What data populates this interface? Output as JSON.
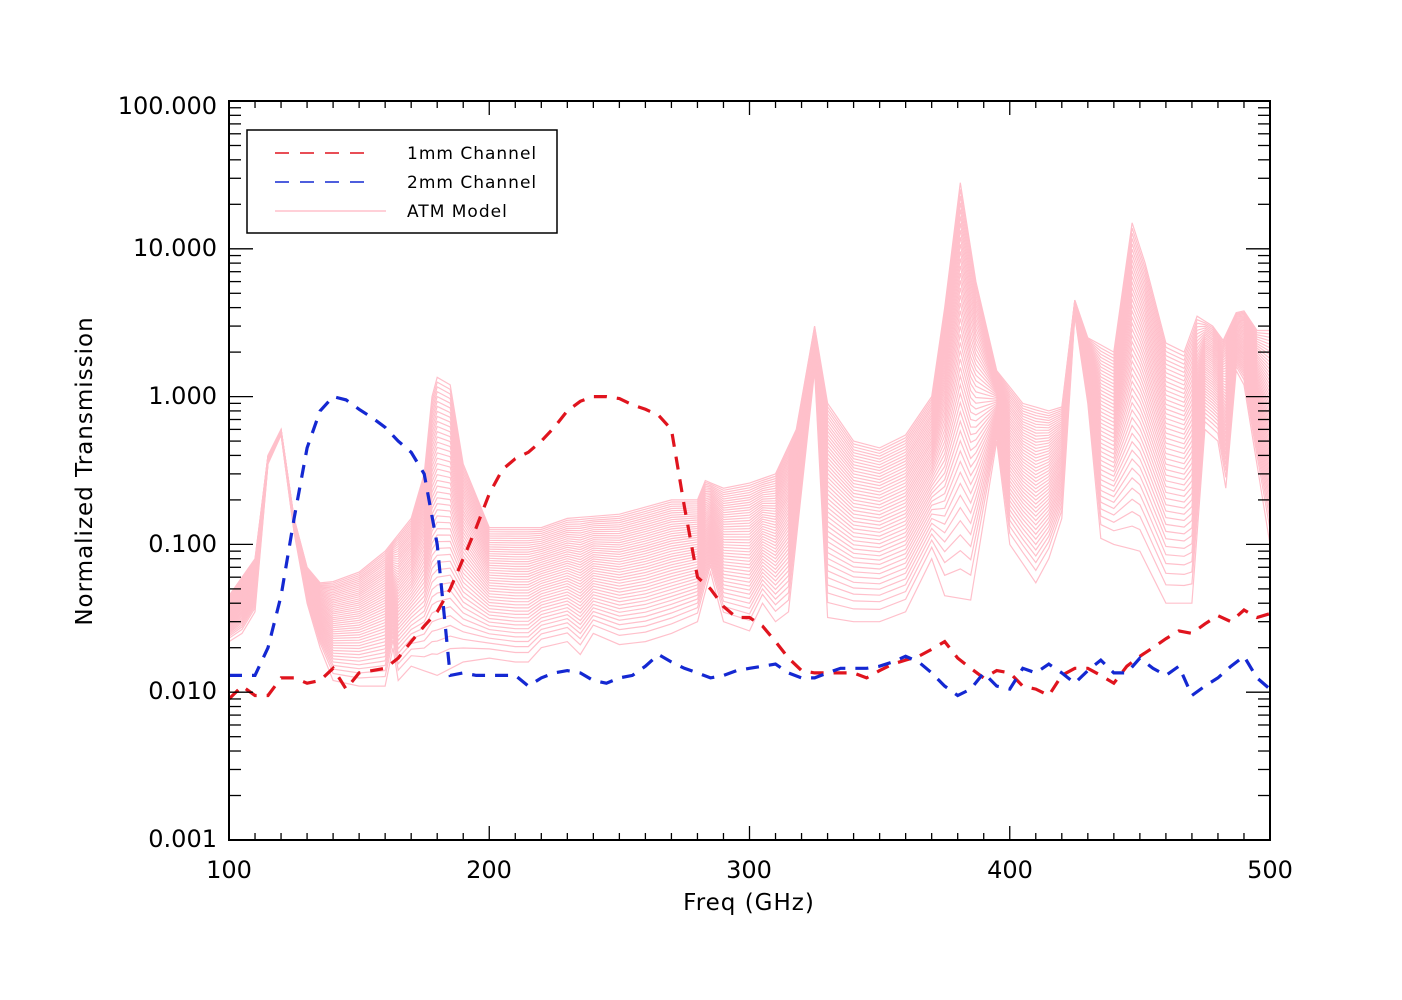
{
  "chart_data": {
    "type": "line",
    "title": "",
    "xlabel": "Freq (GHz)",
    "ylabel": "Normalized Transmission",
    "xlim": [
      100,
      500
    ],
    "ylim": [
      0.001,
      100
    ],
    "yscale": "log",
    "grid": false,
    "x_ticks": [
      100,
      200,
      300,
      400,
      500
    ],
    "x_tick_labels": [
      "100",
      "200",
      "300",
      "400",
      "500"
    ],
    "y_ticks": [
      0.001,
      0.01,
      0.1,
      1,
      10,
      100
    ],
    "y_tick_labels": [
      "0.001",
      "0.010",
      "0.100",
      "1.000",
      "10.000",
      "100.000"
    ],
    "legend": {
      "position": "top-left",
      "entries": [
        {
          "label": "1mm Channel",
          "color": "#e0141e",
          "style": "dashed"
        },
        {
          "label": "2mm Channel",
          "color": "#1428d2",
          "style": "dashed"
        },
        {
          "label": "ATM Model",
          "color": "#ffc0cb",
          "style": "solid"
        }
      ]
    },
    "series": [
      {
        "name": "1mm Channel",
        "color": "#e0141e",
        "style": "dashed",
        "x": [
          100,
          105,
          110,
          115,
          120,
          125,
          130,
          135,
          140,
          145,
          150,
          160,
          165,
          170,
          175,
          180,
          185,
          190,
          195,
          200,
          205,
          210,
          215,
          220,
          225,
          230,
          235,
          240,
          245,
          250,
          255,
          260,
          265,
          270,
          275,
          280,
          285,
          290,
          295,
          300,
          305,
          310,
          315,
          320,
          325,
          330,
          335,
          340,
          345,
          350,
          355,
          360,
          365,
          370,
          375,
          380,
          385,
          390,
          395,
          400,
          405,
          410,
          415,
          420,
          425,
          430,
          435,
          440,
          445,
          450,
          455,
          460,
          465,
          470,
          475,
          480,
          485,
          490,
          495,
          500
        ],
        "y": [
          0.009,
          0.011,
          0.0095,
          0.0095,
          0.0125,
          0.0125,
          0.0115,
          0.012,
          0.0145,
          0.0105,
          0.0135,
          0.0145,
          0.017,
          0.022,
          0.028,
          0.035,
          0.05,
          0.08,
          0.13,
          0.22,
          0.32,
          0.38,
          0.42,
          0.5,
          0.62,
          0.8,
          0.93,
          1.0,
          1.0,
          0.97,
          0.88,
          0.82,
          0.75,
          0.6,
          0.18,
          0.06,
          0.05,
          0.038,
          0.032,
          0.032,
          0.028,
          0.022,
          0.017,
          0.014,
          0.0135,
          0.0135,
          0.0135,
          0.0135,
          0.0125,
          0.014,
          0.0155,
          0.0165,
          0.0175,
          0.0195,
          0.022,
          0.017,
          0.0145,
          0.0125,
          0.014,
          0.0135,
          0.011,
          0.0105,
          0.0095,
          0.013,
          0.0145,
          0.0145,
          0.013,
          0.0115,
          0.015,
          0.0175,
          0.02,
          0.023,
          0.026,
          0.025,
          0.029,
          0.033,
          0.03,
          0.036,
          0.032,
          0.034
        ]
      },
      {
        "name": "2mm Channel",
        "color": "#1428d2",
        "style": "dashed",
        "x": [
          100,
          105,
          110,
          115,
          120,
          125,
          130,
          135,
          140,
          145,
          150,
          155,
          160,
          165,
          170,
          175,
          180,
          185,
          190,
          195,
          200,
          205,
          210,
          215,
          220,
          225,
          230,
          235,
          240,
          245,
          250,
          255,
          260,
          265,
          270,
          275,
          280,
          285,
          290,
          295,
          300,
          305,
          310,
          315,
          320,
          325,
          330,
          335,
          340,
          345,
          350,
          355,
          360,
          365,
          370,
          375,
          380,
          385,
          390,
          395,
          400,
          405,
          410,
          415,
          420,
          425,
          430,
          435,
          440,
          445,
          450,
          455,
          460,
          465,
          470,
          475,
          480,
          485,
          490,
          495,
          500
        ],
        "y": [
          0.013,
          0.013,
          0.013,
          0.02,
          0.045,
          0.15,
          0.45,
          0.8,
          1.0,
          0.95,
          0.82,
          0.72,
          0.62,
          0.5,
          0.42,
          0.3,
          0.1,
          0.013,
          0.0135,
          0.013,
          0.013,
          0.013,
          0.013,
          0.011,
          0.0125,
          0.0135,
          0.014,
          0.0135,
          0.012,
          0.0115,
          0.0125,
          0.013,
          0.015,
          0.018,
          0.016,
          0.0145,
          0.0135,
          0.0125,
          0.013,
          0.014,
          0.0145,
          0.015,
          0.0155,
          0.0135,
          0.0125,
          0.0125,
          0.0135,
          0.0145,
          0.0145,
          0.0145,
          0.015,
          0.016,
          0.0175,
          0.016,
          0.0135,
          0.011,
          0.0095,
          0.0105,
          0.0135,
          0.011,
          0.0105,
          0.0145,
          0.0135,
          0.0155,
          0.0135,
          0.0115,
          0.014,
          0.0165,
          0.0135,
          0.0135,
          0.017,
          0.0145,
          0.013,
          0.015,
          0.0095,
          0.011,
          0.0125,
          0.015,
          0.0175,
          0.0125,
          0.0105
        ]
      },
      {
        "name": "ATM Model",
        "color": "#ffc0cb",
        "style": "solid",
        "n_curves": 45,
        "upper_envelope": {
          "x": [
            100,
            105,
            110,
            115,
            120,
            125,
            130,
            135,
            140,
            150,
            160,
            170,
            175,
            178,
            180,
            185,
            190,
            200,
            210,
            220,
            230,
            250,
            270,
            280,
            283,
            290,
            300,
            310,
            318,
            325,
            330,
            340,
            350,
            360,
            370,
            375,
            381,
            387,
            395,
            405,
            415,
            420,
            425,
            430,
            440,
            447,
            452,
            460,
            467,
            472,
            478,
            482,
            487,
            490,
            495,
            500
          ],
          "y": [
            0.045,
            0.06,
            0.08,
            0.4,
            0.6,
            0.15,
            0.07,
            0.055,
            0.056,
            0.065,
            0.09,
            0.15,
            0.3,
            1.0,
            1.35,
            1.2,
            0.35,
            0.13,
            0.13,
            0.13,
            0.15,
            0.16,
            0.2,
            0.2,
            0.27,
            0.24,
            0.26,
            0.3,
            0.6,
            3.0,
            0.9,
            0.5,
            0.45,
            0.55,
            1.0,
            4.0,
            28,
            6,
            1.5,
            0.9,
            0.8,
            0.85,
            4.5,
            2.5,
            2.0,
            15,
            8,
            2.3,
            2.0,
            3.5,
            3.0,
            2.4,
            3.7,
            3.8,
            2.8,
            2.8
          ]
        },
        "lower_envelope": {
          "x": [
            100,
            105,
            110,
            115,
            120,
            125,
            130,
            135,
            140,
            150,
            160,
            163,
            165,
            170,
            180,
            190,
            200,
            210,
            215,
            220,
            230,
            235,
            240,
            250,
            260,
            270,
            280,
            285,
            290,
            300,
            305,
            310,
            315,
            325,
            330,
            340,
            350,
            360,
            370,
            375,
            385,
            395,
            400,
            410,
            415,
            420,
            425,
            430,
            435,
            440,
            450,
            455,
            460,
            470,
            475,
            480,
            483,
            487,
            490,
            500
          ],
          "y": [
            0.022,
            0.025,
            0.035,
            0.35,
            0.55,
            0.12,
            0.04,
            0.02,
            0.012,
            0.011,
            0.011,
            0.02,
            0.012,
            0.015,
            0.013,
            0.016,
            0.017,
            0.016,
            0.016,
            0.02,
            0.022,
            0.018,
            0.025,
            0.021,
            0.022,
            0.025,
            0.03,
            0.065,
            0.03,
            0.026,
            0.04,
            0.03,
            0.035,
            1.5,
            0.032,
            0.03,
            0.03,
            0.035,
            0.08,
            0.045,
            0.042,
            0.5,
            0.1,
            0.055,
            0.08,
            0.15,
            3.5,
            0.9,
            0.11,
            0.1,
            0.09,
            0.06,
            0.04,
            0.04,
            0.6,
            0.5,
            0.24,
            1.5,
            1.2,
            0.1
          ]
        }
      }
    ]
  }
}
